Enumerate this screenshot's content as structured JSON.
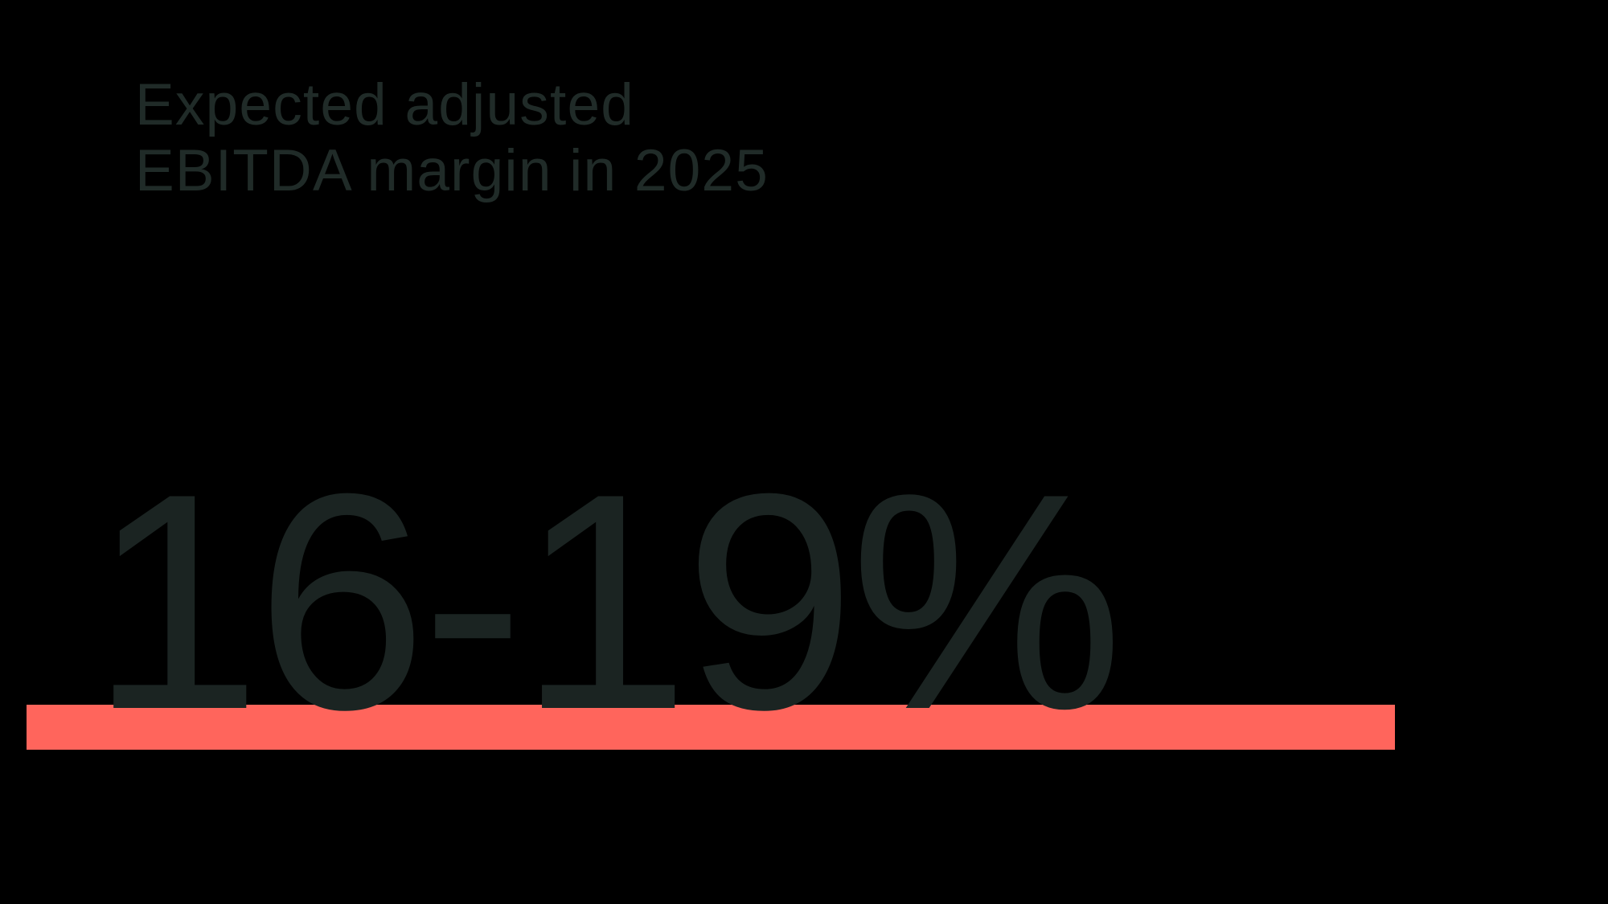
{
  "page": {
    "background_color": "#000000"
  },
  "stat": {
    "label": "Expected adjusted\nEBITDA margin in 2025",
    "value": "16-19%",
    "label_color": "#202B28",
    "value_color": "#1B2422",
    "accent_bar_color": "#FF655C"
  },
  "chart_data": {
    "type": "table",
    "title": "Expected adjusted EBITDA margin in 2025",
    "rows": [
      {
        "metric": "Expected adjusted EBITDA margin",
        "year": 2025,
        "value": "16-19%",
        "min_pct": 16,
        "max_pct": 19
      }
    ],
    "unit": "%",
    "annotations": [
      "16-19%"
    ],
    "layout_hints": {
      "style": "big-number KPI stat with accent underline bar",
      "background": "#000000",
      "accent_color": "#FF655C",
      "text_color": "#1B2422"
    }
  }
}
